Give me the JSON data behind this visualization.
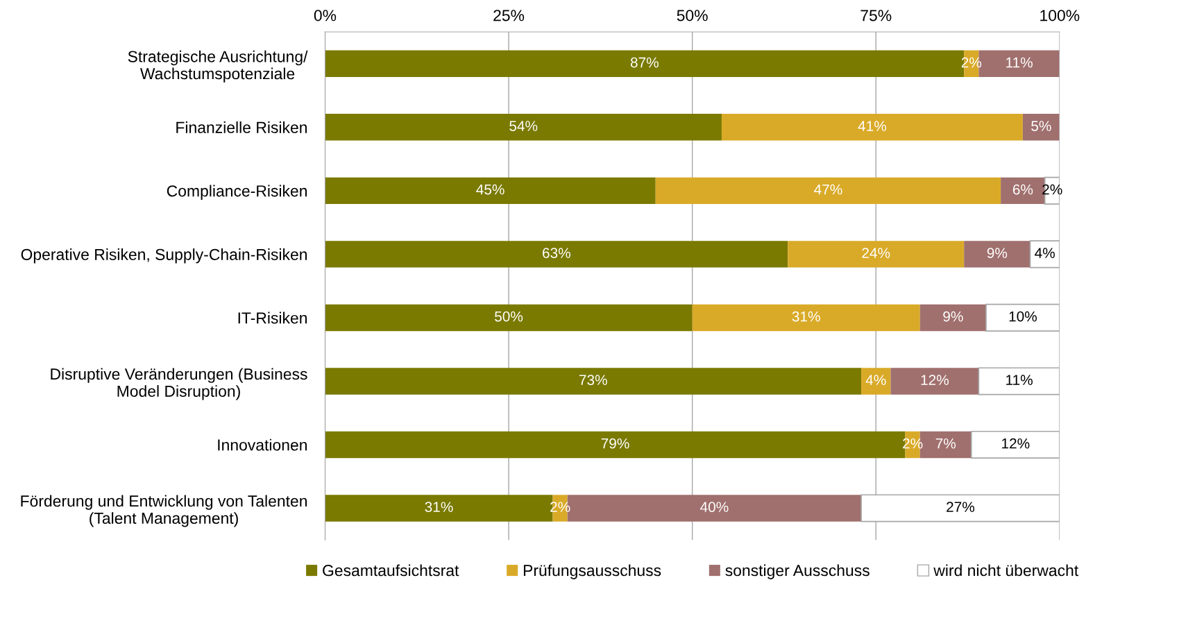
{
  "chart_data": {
    "type": "bar",
    "orientation": "horizontal",
    "stacked": true,
    "categories": [
      "Strategische Ausrichtung/\nWachstumspotenziale",
      "Finanzielle Risiken",
      "Compliance-Risiken",
      "Operative Risiken, Supply-Chain-Risiken",
      "IT-Risiken",
      "Disruptive Veränderungen (Business\nModel Disruption)",
      "Innovationen",
      "Förderung und Entwicklung von Talenten\n(Talent Management)"
    ],
    "series": [
      {
        "name": "Gesamtaufsichtsrat",
        "color": "#7a7a00",
        "values": [
          87,
          54,
          45,
          63,
          50,
          73,
          79,
          31
        ],
        "value_labels": [
          "87%",
          "54%",
          "45%",
          "63%",
          "50%",
          "73%",
          "79%",
          "31%"
        ]
      },
      {
        "name": "Prüfungsausschuss",
        "color": "#d9aa28",
        "values": [
          2,
          41,
          47,
          24,
          31,
          4,
          2,
          2
        ],
        "value_labels": [
          "2%",
          "41%",
          "47%",
          "24%",
          "31%",
          "4%",
          "2%",
          "2%"
        ]
      },
      {
        "name": "sonstiger Ausschuss",
        "color": "#a0706e",
        "values": [
          11,
          5,
          6,
          9,
          9,
          12,
          7,
          40
        ],
        "value_labels": [
          "11%",
          "5%",
          "6%",
          "9%",
          "9%",
          "12%",
          "7%",
          "40%"
        ]
      },
      {
        "name": "wird nicht überwacht",
        "color": "#ffffff",
        "values": [
          null,
          null,
          2,
          4,
          10,
          11,
          12,
          27
        ],
        "value_labels": [
          null,
          null,
          "2%",
          "4%",
          "10%",
          "11%",
          "12%",
          "27%"
        ]
      }
    ],
    "xlim": [
      0,
      100
    ],
    "xticks": [
      {
        "value": 0,
        "label": "0%"
      },
      {
        "value": 25,
        "label": "25%"
      },
      {
        "value": 50,
        "label": "50%"
      },
      {
        "value": 75,
        "label": "75%"
      },
      {
        "value": 100,
        "label": "100%"
      }
    ],
    "grid": "x",
    "legend": "bottom"
  }
}
